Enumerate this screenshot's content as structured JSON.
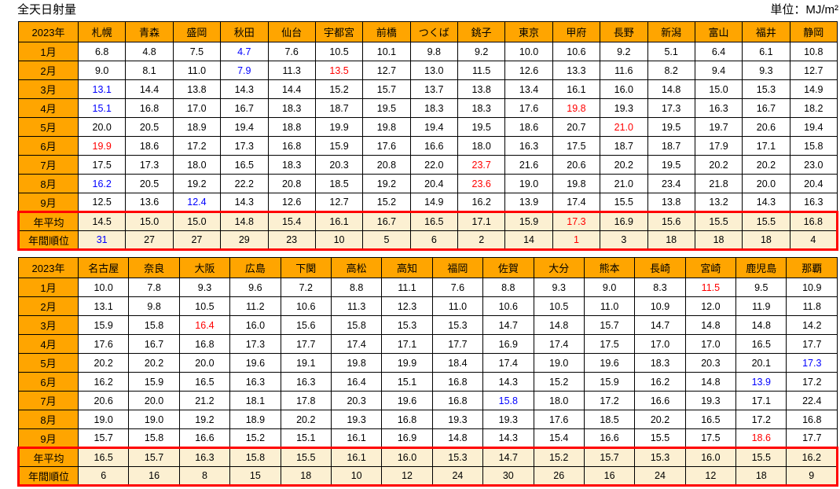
{
  "title": "全天日射量",
  "unit_label": "単位：MJ/m²",
  "colors": {
    "header_bg": "#FFA500",
    "summary_bg": "#FCF0D2",
    "highlight_red": "#FF0000",
    "highlight_blue": "#0000FF",
    "grid": "#000000"
  },
  "tables": [
    {
      "corner": "2023年",
      "cities": [
        "札幌",
        "青森",
        "盛岡",
        "秋田",
        "仙台",
        "宇都宮",
        "前橋",
        "つくば",
        "銚子",
        "東京",
        "甲府",
        "長野",
        "新潟",
        "富山",
        "福井",
        "静岡"
      ],
      "months": [
        "1月",
        "2月",
        "3月",
        "4月",
        "5月",
        "6月",
        "7月",
        "8月",
        "9月"
      ],
      "data": [
        [
          "6.8",
          "4.8",
          "7.5",
          {
            "v": "4.7",
            "c": "blue"
          },
          "7.6",
          "10.5",
          "10.1",
          "9.8",
          "9.2",
          "10.0",
          "10.6",
          "9.2",
          "5.1",
          "6.4",
          "6.1",
          "10.8"
        ],
        [
          "9.0",
          "8.1",
          "11.0",
          {
            "v": "7.9",
            "c": "blue"
          },
          "11.3",
          {
            "v": "13.5",
            "c": "red"
          },
          "12.7",
          "13.0",
          "11.5",
          "12.6",
          "13.3",
          "11.6",
          "8.2",
          "9.4",
          "9.3",
          "12.7"
        ],
        [
          {
            "v": "13.1",
            "c": "blue"
          },
          "14.4",
          "13.8",
          "14.3",
          "14.4",
          "15.2",
          "15.7",
          "13.7",
          "13.8",
          "13.4",
          "16.1",
          "16.0",
          "14.8",
          "15.0",
          "15.3",
          "14.9"
        ],
        [
          {
            "v": "15.1",
            "c": "blue"
          },
          "16.8",
          "17.0",
          "16.7",
          "18.3",
          "18.7",
          "19.5",
          "18.3",
          "18.3",
          "17.6",
          {
            "v": "19.8",
            "c": "red"
          },
          "19.3",
          "17.3",
          "16.3",
          "16.7",
          "18.2"
        ],
        [
          "20.0",
          "20.5",
          "18.9",
          "19.4",
          "18.8",
          "19.9",
          "19.8",
          "19.4",
          "19.5",
          "18.6",
          "20.7",
          {
            "v": "21.0",
            "c": "red"
          },
          "19.5",
          "19.7",
          "20.6",
          "19.4"
        ],
        [
          {
            "v": "19.9",
            "c": "red"
          },
          "18.6",
          "17.2",
          "17.3",
          "16.8",
          "15.9",
          "17.6",
          "16.6",
          "18.0",
          "16.3",
          "17.5",
          "18.7",
          "18.7",
          "17.9",
          "17.1",
          "15.8"
        ],
        [
          "17.5",
          "17.3",
          "18.0",
          "16.5",
          "18.3",
          "20.3",
          "20.8",
          "22.0",
          {
            "v": "23.7",
            "c": "red"
          },
          "21.6",
          "20.6",
          "20.2",
          "19.5",
          "20.2",
          "20.2",
          "23.0"
        ],
        [
          {
            "v": "16.2",
            "c": "blue"
          },
          "20.5",
          "19.2",
          "22.2",
          "20.8",
          "18.5",
          "19.2",
          "20.4",
          {
            "v": "23.6",
            "c": "red"
          },
          "19.0",
          "19.8",
          "21.0",
          "23.4",
          "21.8",
          "20.0",
          "20.4"
        ],
        [
          "12.5",
          "13.6",
          {
            "v": "12.4",
            "c": "blue"
          },
          "14.3",
          "12.6",
          "12.7",
          "15.2",
          "14.9",
          "16.2",
          "13.9",
          "17.4",
          "15.5",
          "13.8",
          "13.2",
          "14.3",
          "16.3"
        ]
      ],
      "avg_label": "年平均",
      "avg": [
        "14.5",
        "15.0",
        "15.0",
        "14.8",
        "15.4",
        "16.1",
        "16.7",
        "16.5",
        "17.1",
        "15.9",
        {
          "v": "17.3",
          "c": "red"
        },
        "16.9",
        "15.6",
        "15.5",
        "15.5",
        "16.8"
      ],
      "rank_label": "年間順位",
      "rank": [
        {
          "v": "31",
          "c": "blue"
        },
        "27",
        "27",
        "29",
        "23",
        "10",
        "5",
        "6",
        "2",
        "14",
        {
          "v": "1",
          "c": "red"
        },
        "3",
        "18",
        "18",
        "18",
        "4"
      ]
    },
    {
      "corner": "2023年",
      "cities": [
        "名古屋",
        "奈良",
        "大阪",
        "広島",
        "下関",
        "高松",
        "高知",
        "福岡",
        "佐賀",
        "大分",
        "熊本",
        "長崎",
        "宮崎",
        "鹿児島",
        "那覇"
      ],
      "months": [
        "1月",
        "2月",
        "3月",
        "4月",
        "5月",
        "6月",
        "7月",
        "8月",
        "9月"
      ],
      "data": [
        [
          "10.0",
          "7.8",
          "9.3",
          "9.6",
          "7.2",
          "8.8",
          "11.1",
          "7.6",
          "8.8",
          "9.3",
          "9.0",
          "8.3",
          {
            "v": "11.5",
            "c": "red"
          },
          "9.5",
          "10.9"
        ],
        [
          "13.1",
          "9.8",
          "10.5",
          "11.2",
          "10.6",
          "11.3",
          "12.3",
          "11.0",
          "10.6",
          "10.5",
          "11.0",
          "10.9",
          "12.0",
          "11.9",
          "11.8"
        ],
        [
          "15.9",
          "15.8",
          {
            "v": "16.4",
            "c": "red"
          },
          "16.0",
          "15.6",
          "15.8",
          "15.3",
          "15.3",
          "14.7",
          "14.8",
          "15.7",
          "14.7",
          "14.8",
          "14.8",
          "14.2"
        ],
        [
          "17.6",
          "16.7",
          "16.8",
          "17.3",
          "17.7",
          "17.4",
          "17.1",
          "17.7",
          "16.9",
          "17.4",
          "17.5",
          "17.0",
          "17.0",
          "16.5",
          "17.7"
        ],
        [
          "20.2",
          "20.2",
          "20.0",
          "19.6",
          "19.1",
          "19.8",
          "19.9",
          "18.4",
          "17.4",
          "19.0",
          "19.6",
          "18.3",
          "20.3",
          "20.1",
          {
            "v": "17.3",
            "c": "blue"
          }
        ],
        [
          "16.2",
          "15.9",
          "16.5",
          "16.3",
          "16.3",
          "16.4",
          "15.1",
          "16.8",
          "14.3",
          "15.2",
          "15.9",
          "16.2",
          "14.8",
          {
            "v": "13.9",
            "c": "blue"
          },
          "17.2"
        ],
        [
          "20.6",
          "20.0",
          "21.2",
          "18.1",
          "17.8",
          "20.3",
          "19.6",
          "16.8",
          {
            "v": "15.8",
            "c": "blue"
          },
          "18.0",
          "17.2",
          "16.6",
          "19.3",
          "17.1",
          "22.4"
        ],
        [
          "19.0",
          "19.0",
          "19.2",
          "18.9",
          "20.2",
          "19.3",
          "16.8",
          "19.3",
          "19.3",
          "17.6",
          "18.5",
          "20.2",
          "16.5",
          "17.2",
          "16.8"
        ],
        [
          "15.7",
          "15.8",
          "16.6",
          "15.2",
          "15.1",
          "16.1",
          "16.9",
          "14.8",
          "14.3",
          "15.4",
          "16.6",
          "15.5",
          "17.5",
          {
            "v": "18.6",
            "c": "red"
          },
          "17.7"
        ]
      ],
      "avg_label": "年平均",
      "avg": [
        "16.5",
        "15.7",
        "16.3",
        "15.8",
        "15.5",
        "16.1",
        "16.0",
        "15.3",
        "14.7",
        "15.2",
        "15.7",
        "15.3",
        "16.0",
        "15.5",
        "16.2"
      ],
      "rank_label": "年間順位",
      "rank": [
        "6",
        "16",
        "8",
        "15",
        "18",
        "10",
        "12",
        "24",
        "30",
        "26",
        "16",
        "24",
        "12",
        "18",
        "9"
      ]
    }
  ]
}
